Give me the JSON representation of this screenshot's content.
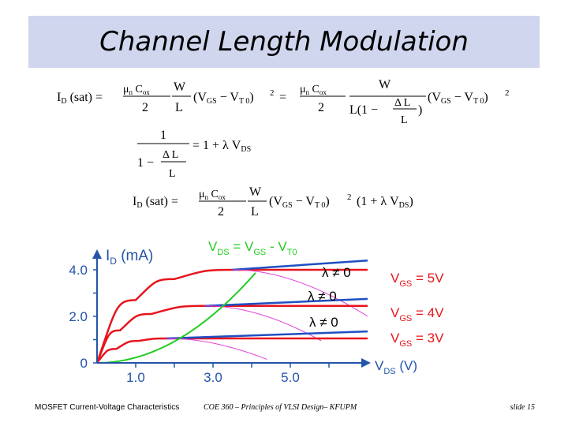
{
  "slide": {
    "title": "Channel Length Modulation",
    "footer_left": "MOSFET Current-Voltage Characteristics",
    "footer_center": "COE 360 – Principles of VLSI Design– KFUPM",
    "footer_right": "slide 15"
  },
  "equations": {
    "eq1": "ID(sat) = (μn Cox / 2)(W/L)(VGS − VT0)² = (μn Cox / 2)(W / L(1 − ΔL/L))(VGS − VT0)²",
    "eq2": "1 / (1 − ΔL/L) = 1 + λ VDS",
    "eq3": "ID(sat) = (μn Cox / 2)(W/L)(VGS − VT0)² (1 + λ VDS)"
  },
  "colors": {
    "title_bg": "#cfd6ee",
    "axis": "#2455a8",
    "red": "#e8141c",
    "blue": "#1f4fc2",
    "green": "#22cc22",
    "magenta": "#e23fd8"
  },
  "chart_data": {
    "type": "line",
    "y_label": "ID (mA)",
    "x_label": "VDS (V)",
    "y_ticks": [
      "4.0",
      "2.0",
      "0"
    ],
    "x_ticks": [
      "1.0",
      "3.0",
      "5.0"
    ],
    "boundary_label": "VDS = VGS - VT0",
    "lambda_labels": [
      "λ ≠ 0",
      "λ ≠ 0",
      "λ ≠ 0"
    ],
    "curve_labels": [
      "VGS = 5V",
      "VGS = 4V",
      "VGS = 3V"
    ],
    "series": [
      {
        "name": "VGS = 5V",
        "x": [
          0,
          1,
          2,
          3.5,
          7.5
        ],
        "y": [
          0,
          2.7,
          3.6,
          4.0,
          4.0
        ],
        "lambda_sat": [
          4.0,
          4.4
        ]
      },
      {
        "name": "VGS = 4V",
        "x": [
          0,
          0.6,
          1.4,
          2.8,
          7.5
        ],
        "y": [
          0,
          1.4,
          2.1,
          2.45,
          2.45
        ],
        "lambda_sat": [
          2.45,
          2.75
        ]
      },
      {
        "name": "VGS = 3V",
        "x": [
          0,
          0.5,
          1.1,
          1.8,
          7.5
        ],
        "y": [
          0,
          0.6,
          0.95,
          1.05,
          1.05
        ],
        "lambda_sat": [
          1.05,
          1.35
        ]
      }
    ]
  }
}
